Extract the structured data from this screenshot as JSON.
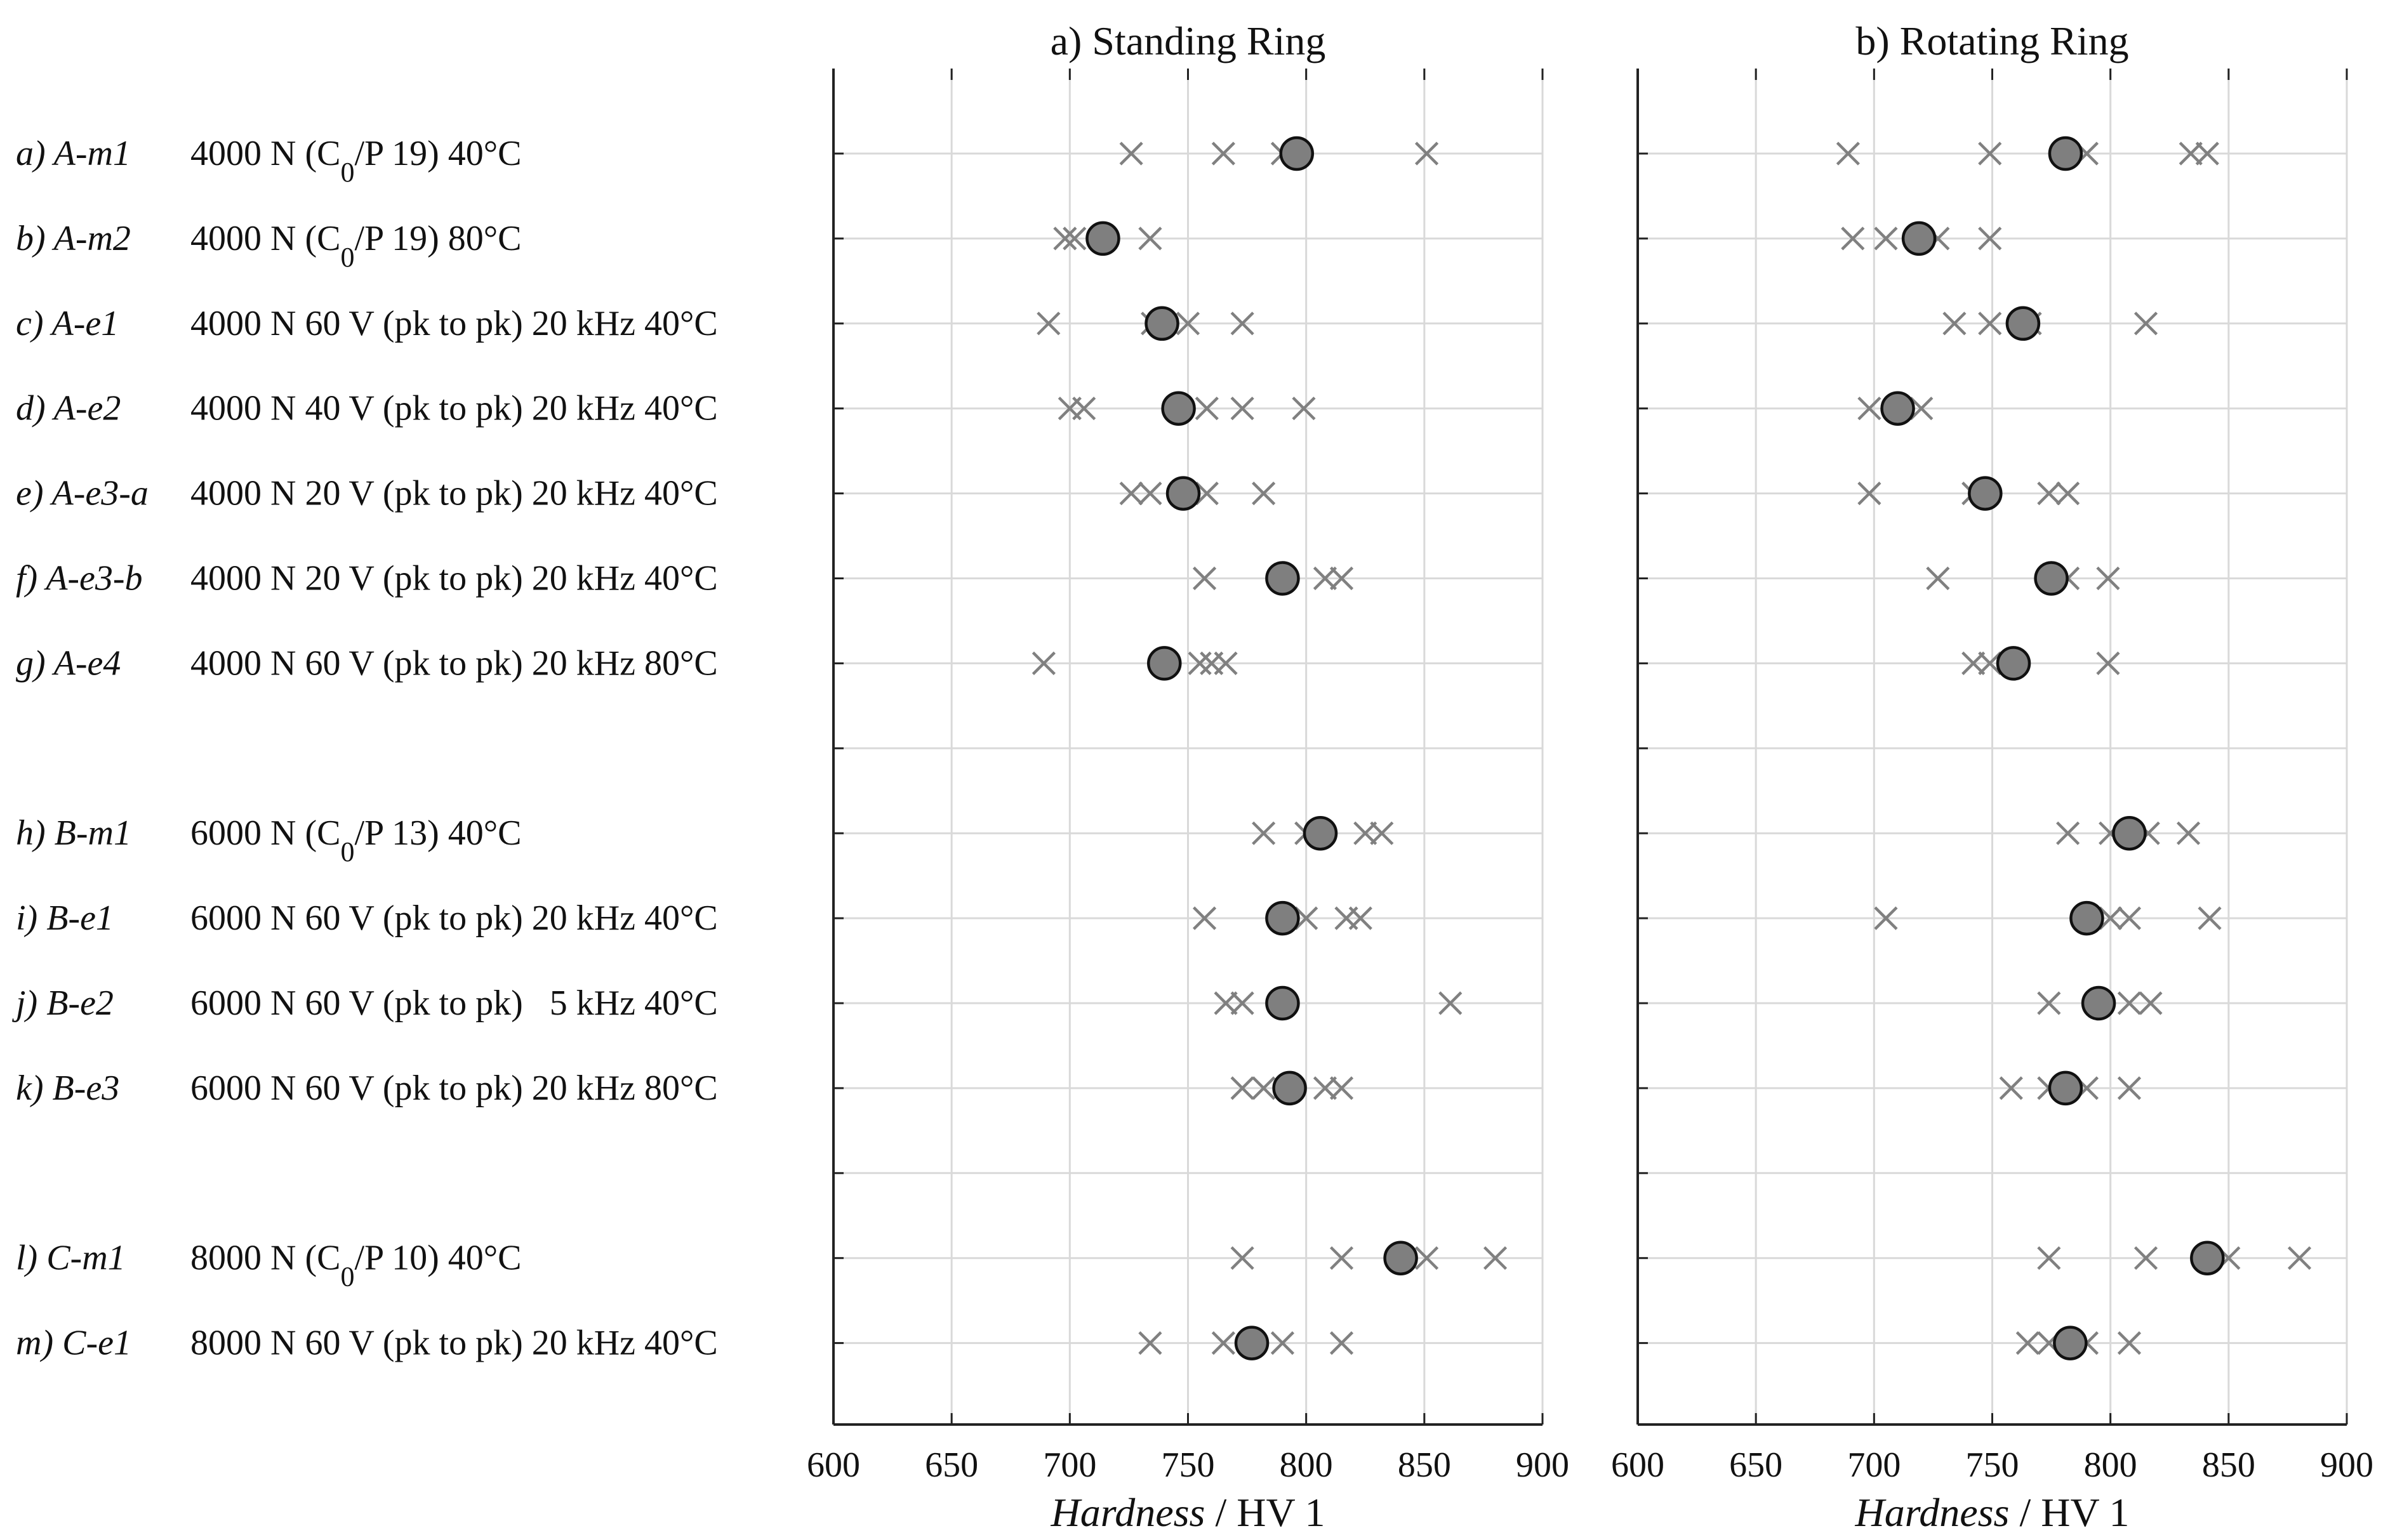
{
  "chart_data": {
    "type": "scatter",
    "xlabel_italic": "Hardness",
    "xlabel_rest": " / HV 1",
    "xlim": [
      600,
      900
    ],
    "xticks": [
      600,
      650,
      700,
      750,
      800,
      850,
      900
    ],
    "grid": true,
    "rows": [
      {
        "id": "a) A-m1",
        "cond": "4000 N (C",
        "sub": "0",
        "cond2": "/P 19) 40°C"
      },
      {
        "id": "b) A-m2",
        "cond": "4000 N (C",
        "sub": "0",
        "cond2": "/P 19) 80°C"
      },
      {
        "id": "c) A-e1",
        "cond": "4000 N 60 V (pk to pk) 20 kHz 40°C"
      },
      {
        "id": "d) A-e2",
        "cond": "4000 N 40 V (pk to pk) 20 kHz 40°C"
      },
      {
        "id": "e) A-e3-a",
        "cond": "4000 N 20 V (pk to pk) 20 kHz 40°C"
      },
      {
        "id": "f) A-e3-b",
        "cond": "4000 N 20 V (pk to pk) 20 kHz 40°C"
      },
      {
        "id": "g) A-e4",
        "cond": "4000 N 60 V (pk to pk) 20 kHz 80°C"
      },
      {
        "id": "h) B-m1",
        "cond": "6000 N (C",
        "sub": "0",
        "cond2": "/P 13) 40°C"
      },
      {
        "id": "i) B-e1",
        "cond": "6000 N 60 V (pk to pk) 20 kHz 40°C"
      },
      {
        "id": "j) B-e2",
        "cond": "6000 N 60 V (pk to pk)   5 kHz 40°C"
      },
      {
        "id": "k) B-e3",
        "cond": "6000 N 60 V (pk to pk) 20 kHz 80°C"
      },
      {
        "id": "l) C-m1",
        "cond": "8000 N (C",
        "sub": "0",
        "cond2": "/P 10) 40°C"
      },
      {
        "id": "m) C-e1",
        "cond": "8000 N 60 V (pk to pk) 20 kHz 40°C"
      }
    ],
    "panels": [
      {
        "title": "a) Standing Ring",
        "series": [
          {
            "row": "a) A-m1",
            "measurements": [
              726,
              765,
              790,
              851
            ],
            "mean": 796
          },
          {
            "row": "b) A-m2",
            "measurements": [
              698,
              702,
              734
            ],
            "mean": 714
          },
          {
            "row": "c) A-e1",
            "measurements": [
              691,
              735,
              750,
              773
            ],
            "mean": 739
          },
          {
            "row": "d) A-e2",
            "measurements": [
              700,
              706,
              758,
              773,
              799
            ],
            "mean": 746
          },
          {
            "row": "e) A-e3-a",
            "measurements": [
              726,
              734,
              758,
              782
            ],
            "mean": 748
          },
          {
            "row": "f) A-e3-b",
            "measurements": [
              757,
              808,
              815
            ],
            "mean": 790
          },
          {
            "row": "g) A-e4",
            "measurements": [
              689,
              755,
              760,
              766
            ],
            "mean": 740
          },
          {
            "row": "h) B-m1",
            "measurements": [
              782,
              800,
              825,
              832
            ],
            "mean": 806
          },
          {
            "row": "i) B-e1",
            "measurements": [
              757,
              800,
              817,
              823
            ],
            "mean": 790
          },
          {
            "row": "j) B-e2",
            "measurements": [
              766,
              773,
              861
            ],
            "mean": 790
          },
          {
            "row": "k) B-e3",
            "measurements": [
              773,
              782,
              808,
              815
            ],
            "mean": 793
          },
          {
            "row": "l) C-m1",
            "measurements": [
              773,
              815,
              851,
              880
            ],
            "mean": 840
          },
          {
            "row": "m) C-e1",
            "measurements": [
              734,
              765,
              790,
              815
            ],
            "mean": 777
          }
        ]
      },
      {
        "title": "b) Rotating Ring",
        "series": [
          {
            "row": "a) A-m1",
            "measurements": [
              689,
              749,
              790,
              834,
              841
            ],
            "mean": 781
          },
          {
            "row": "b) A-m2",
            "measurements": [
              691,
              705,
              727,
              749
            ],
            "mean": 719
          },
          {
            "row": "c) A-e1",
            "measurements": [
              734,
              749,
              766,
              815
            ],
            "mean": 763
          },
          {
            "row": "d) A-e2",
            "measurements": [
              698,
              720
            ],
            "mean": 710
          },
          {
            "row": "e) A-e3-a",
            "measurements": [
              698,
              742,
              774,
              782
            ],
            "mean": 747
          },
          {
            "row": "f) A-e3-b",
            "measurements": [
              727,
              782,
              799
            ],
            "mean": 775
          },
          {
            "row": "g) A-e4",
            "measurements": [
              742,
              749,
              799
            ],
            "mean": 759
          },
          {
            "row": "h) B-m1",
            "measurements": [
              782,
              800,
              816,
              833
            ],
            "mean": 808
          },
          {
            "row": "i) B-e1",
            "measurements": [
              705,
              800,
              808,
              842
            ],
            "mean": 790
          },
          {
            "row": "j) B-e2",
            "measurements": [
              774,
              808,
              817
            ],
            "mean": 795
          },
          {
            "row": "k) B-e3",
            "measurements": [
              758,
              774,
              790,
              808
            ],
            "mean": 781
          },
          {
            "row": "l) C-m1",
            "measurements": [
              774,
              815,
              850,
              880
            ],
            "mean": 841
          },
          {
            "row": "m) C-e1",
            "measurements": [
              765,
              774,
              790,
              808
            ],
            "mean": 783
          }
        ]
      }
    ]
  },
  "colors": {
    "mean_fill": "#7f7f7f",
    "cross": "#808080",
    "grid": "#d9d9d9",
    "axis": "#222222"
  }
}
